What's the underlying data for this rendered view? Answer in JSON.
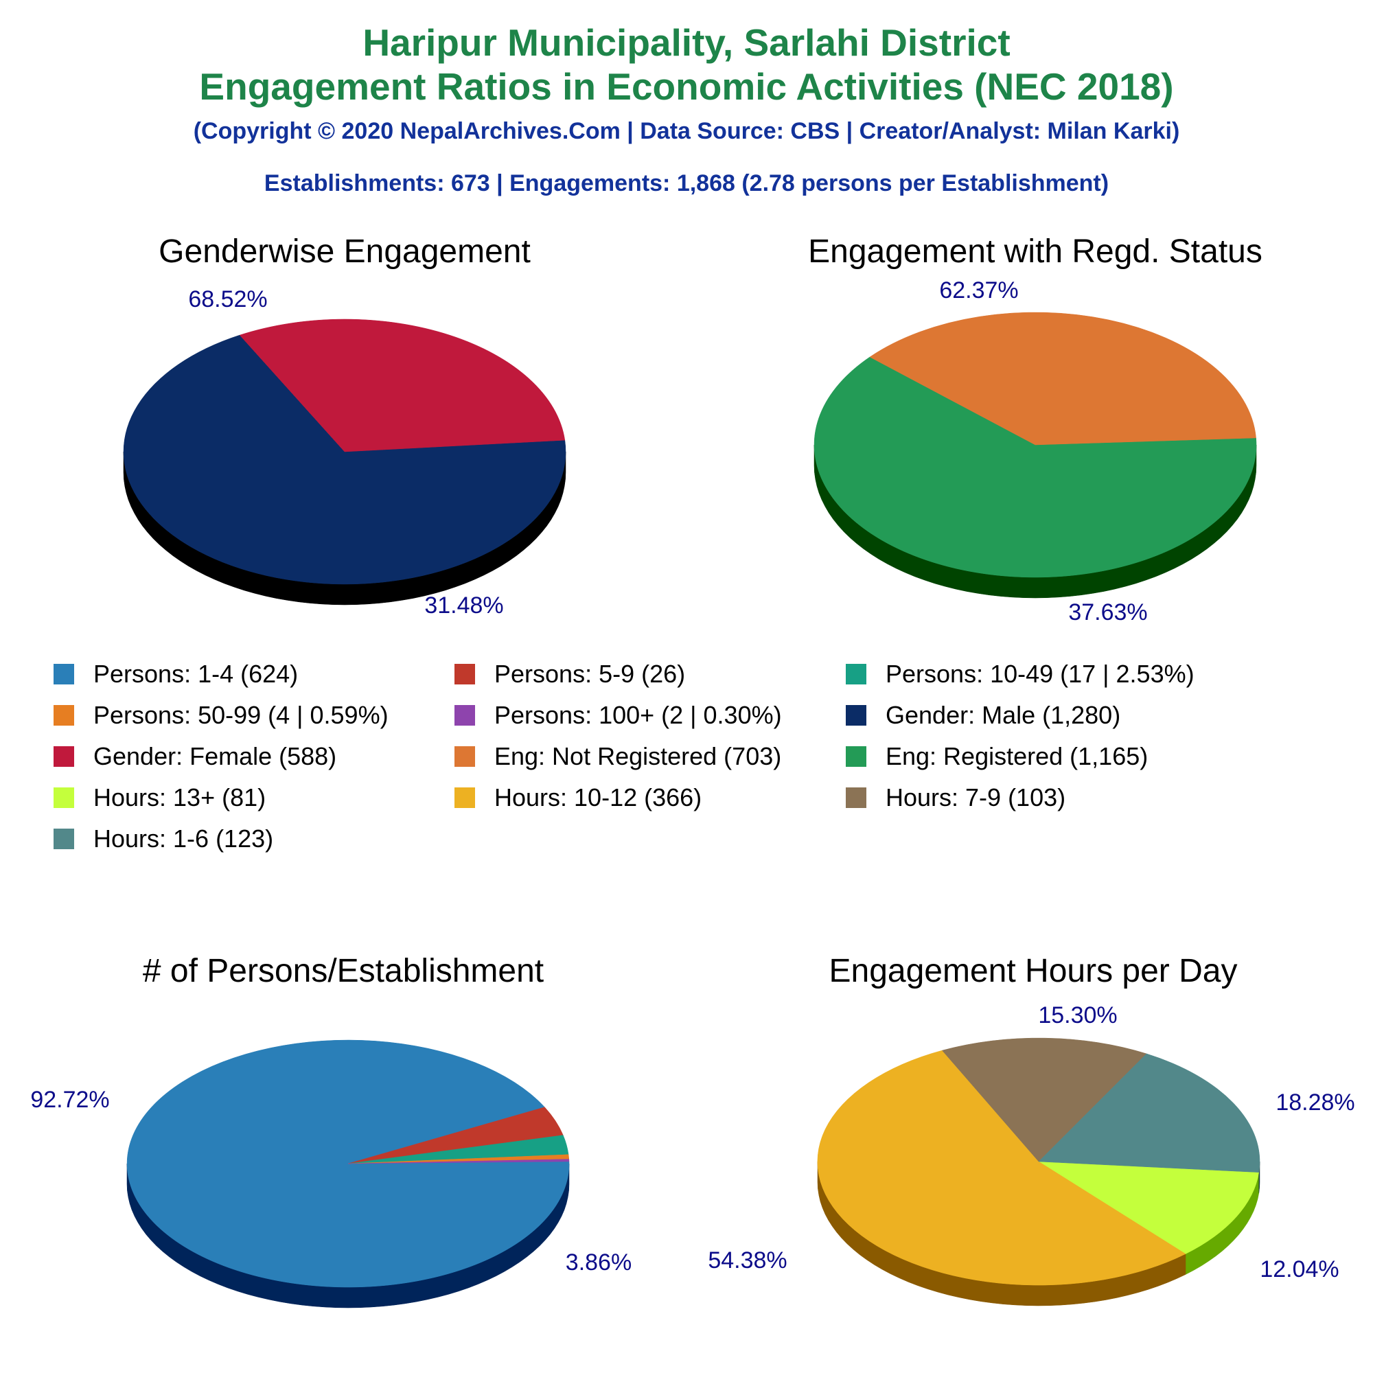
{
  "header": {
    "title_line1": "Haripur Municipality, Sarlahi District",
    "title_line2": "Engagement Ratios in Economic Activities (NEC 2018)",
    "copyright": "(Copyright © 2020 NepalArchives.Com | Data Source: CBS | Creator/Analyst: Milan Karki)",
    "summary": "Establishments: 673 | Engagements: 1,868 (2.78 persons per Establishment)"
  },
  "legend": [
    {
      "label": "Persons: 1-4 (624)",
      "color": "#2a7fb8"
    },
    {
      "label": "Persons: 5-9 (26)",
      "color": "#c0392b"
    },
    {
      "label": "Persons: 10-49 (17 | 2.53%)",
      "color": "#17a085"
    },
    {
      "label": "Persons: 50-99 (4 | 0.59%)",
      "color": "#e67e22"
    },
    {
      "label": "Persons: 100+ (2 | 0.30%)",
      "color": "#8e44ad"
    },
    {
      "label": "Gender: Male (1,280)",
      "color": "#0b2c66"
    },
    {
      "label": "Gender: Female (588)",
      "color": "#c0193c"
    },
    {
      "label": "Eng: Not Registered (703)",
      "color": "#dd7733"
    },
    {
      "label": "Eng: Registered (1,165)",
      "color": "#239b56"
    },
    {
      "label": "Hours: 13+ (81)",
      "color": "#c4ff3c"
    },
    {
      "label": "Hours: 10-12 (366)",
      "color": "#edb122"
    },
    {
      "label": "Hours: 7-9 (103)",
      "color": "#8b7355"
    },
    {
      "label": "Hours: 1-6 (123)",
      "color": "#52888a"
    }
  ],
  "chart_data": [
    {
      "type": "pie",
      "title": "Genderwise Engagement",
      "series": [
        {
          "name": "Gender: Male",
          "value": 1280,
          "percent": 68.52,
          "label": "68.52%",
          "color": "#0b2c66",
          "side": "#000000"
        },
        {
          "name": "Gender: Female",
          "value": 588,
          "percent": 31.48,
          "label": "31.48%",
          "color": "#c0193c",
          "side": "#660000"
        }
      ]
    },
    {
      "type": "pie",
      "title": "Engagement with Regd. Status",
      "series": [
        {
          "name": "Eng: Registered",
          "value": 1165,
          "percent": 62.37,
          "label": "62.37%",
          "color": "#239b56",
          "side": "#004400"
        },
        {
          "name": "Eng: Not Registered",
          "value": 703,
          "percent": 37.63,
          "label": "37.63%",
          "color": "#dd7733",
          "side": "#7a1a00"
        }
      ]
    },
    {
      "type": "pie",
      "title": "# of Persons/Establishment",
      "series": [
        {
          "name": "Persons: 1-4",
          "value": 624,
          "percent": 92.72,
          "label": "92.72%",
          "color": "#2a7fb8",
          "side": "#00245a"
        },
        {
          "name": "Persons: 5-9",
          "value": 26,
          "percent": 3.86,
          "label": "3.86%",
          "color": "#c0392b",
          "side": "#600000"
        },
        {
          "name": "Persons: 10-49",
          "value": 17,
          "percent": 2.53,
          "label": "",
          "color": "#17a085",
          "side": "#004433"
        },
        {
          "name": "Persons: 50-99",
          "value": 4,
          "percent": 0.59,
          "label": "",
          "color": "#e67e22",
          "side": "#7a3a00"
        },
        {
          "name": "Persons: 100+",
          "value": 2,
          "percent": 0.3,
          "label": "",
          "color": "#8e44ad",
          "side": "#3a0a50"
        }
      ]
    },
    {
      "type": "pie",
      "title": "Engagement Hours per Day",
      "series": [
        {
          "name": "Hours: 13+",
          "value": 81,
          "percent": 12.04,
          "label": "12.04%",
          "color": "#c4ff3c",
          "side": "#66aa00"
        },
        {
          "name": "Hours: 10-12",
          "value": 366,
          "percent": 54.38,
          "label": "54.38%",
          "color": "#edb122",
          "side": "#8a5a00"
        },
        {
          "name": "Hours: 7-9",
          "value": 103,
          "percent": 15.3,
          "label": "15.30%",
          "color": "#8b7355",
          "side": "#3a2a15"
        },
        {
          "name": "Hours: 1-6",
          "value": 123,
          "percent": 18.28,
          "label": "18.28%",
          "color": "#52888a",
          "side": "#1e3f40"
        }
      ]
    }
  ]
}
